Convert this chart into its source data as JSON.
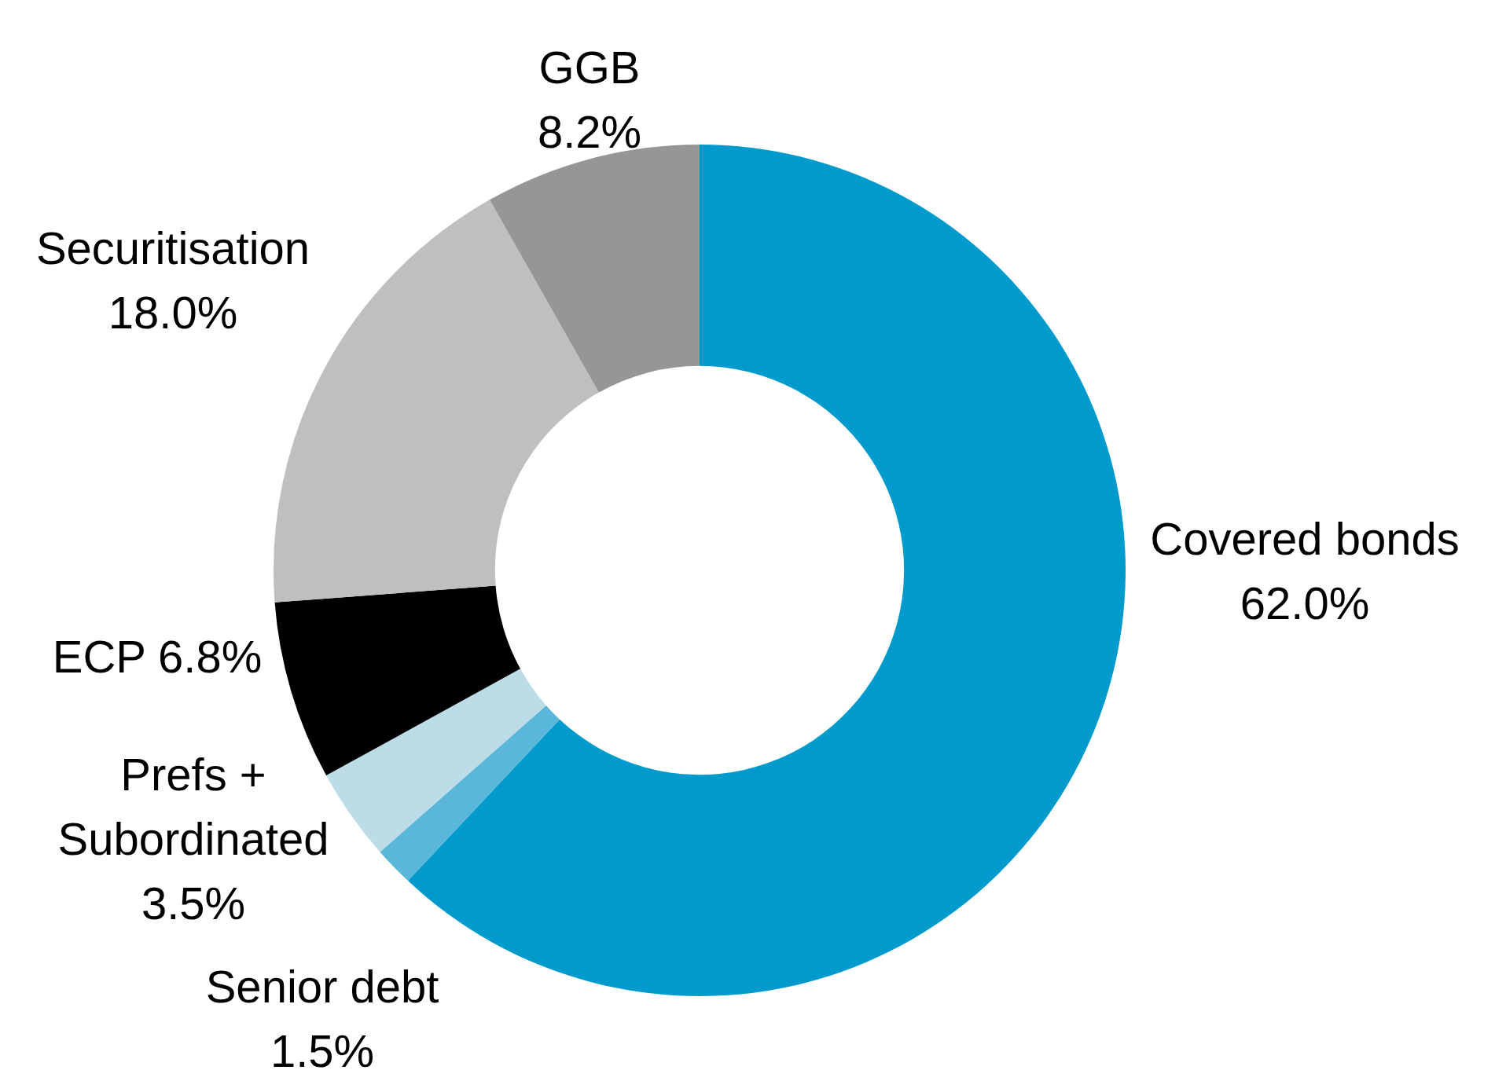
{
  "chart_data": {
    "type": "donut",
    "categories": [
      "Covered bonds",
      "Senior debt",
      "Prefs + Subordinated",
      "ECP",
      "Securitisation",
      "GGB"
    ],
    "values": [
      62.0,
      1.5,
      3.5,
      6.8,
      18.0,
      8.2
    ],
    "value_labels": [
      "62.0%",
      "1.5%",
      "3.5%",
      "6.8%",
      "18.0%",
      "8.2%"
    ],
    "colors": [
      "#009bcc",
      "#5bb7da",
      "#bcdde7",
      "#000000",
      "#bfbfbf",
      "#969696"
    ],
    "legend": false
  }
}
